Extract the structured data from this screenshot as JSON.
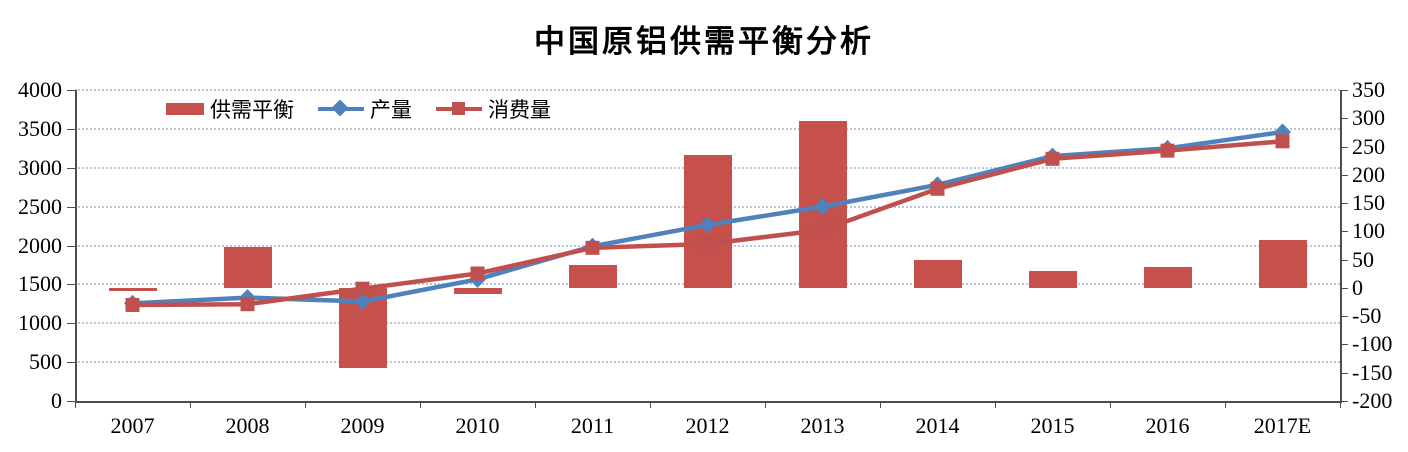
{
  "title": "中国原铝供需平衡分析",
  "colors": {
    "bar": "#c5504c",
    "production_line": "#4f81bd",
    "consumption_line": "#c0504d",
    "gridline": "#b7c6dc",
    "axis": "#4d4d4d",
    "text": "#000000"
  },
  "chart_data": {
    "type": "bar+line combo, dual axis",
    "title": "中国原铝供需平衡分析",
    "categories": [
      "2007",
      "2008",
      "2009",
      "2010",
      "2011",
      "2012",
      "2013",
      "2014",
      "2015",
      "2016",
      "2017E"
    ],
    "series": [
      {
        "name": "供需平衡",
        "type": "bar",
        "axis": "right",
        "marker": "none",
        "color": "#c5504c",
        "values": [
          -5,
          72,
          -142,
          -10,
          40,
          235,
          295,
          50,
          30,
          37,
          85
        ]
      },
      {
        "name": "产量",
        "type": "line",
        "axis": "left",
        "marker": "diamond",
        "color": "#4f81bd",
        "values": [
          1255,
          1330,
          1280,
          1565,
          1990,
          2265,
          2500,
          2780,
          3150,
          3250,
          3460
        ]
      },
      {
        "name": "消费量",
        "type": "line",
        "axis": "left",
        "marker": "square",
        "color": "#c0504d",
        "values": [
          1235,
          1245,
          1445,
          1640,
          1970,
          2020,
          2200,
          2730,
          3115,
          3220,
          3340
        ]
      }
    ],
    "left_axis": {
      "min": 0,
      "max": 4000,
      "step": 500,
      "tick_labels": [
        "0",
        "500",
        "1000",
        "1500",
        "2000",
        "2500",
        "3000",
        "3500",
        "4000"
      ]
    },
    "right_axis": {
      "min": -200,
      "max": 350,
      "step": 50,
      "tick_labels": [
        "-200",
        "-150",
        "-100",
        "-50",
        "0",
        "50",
        "100",
        "150",
        "200",
        "250",
        "300",
        "350"
      ]
    },
    "grid": true,
    "legend_position": "top-left-inside",
    "legend": [
      "供需平衡",
      "产量",
      "消费量"
    ]
  }
}
